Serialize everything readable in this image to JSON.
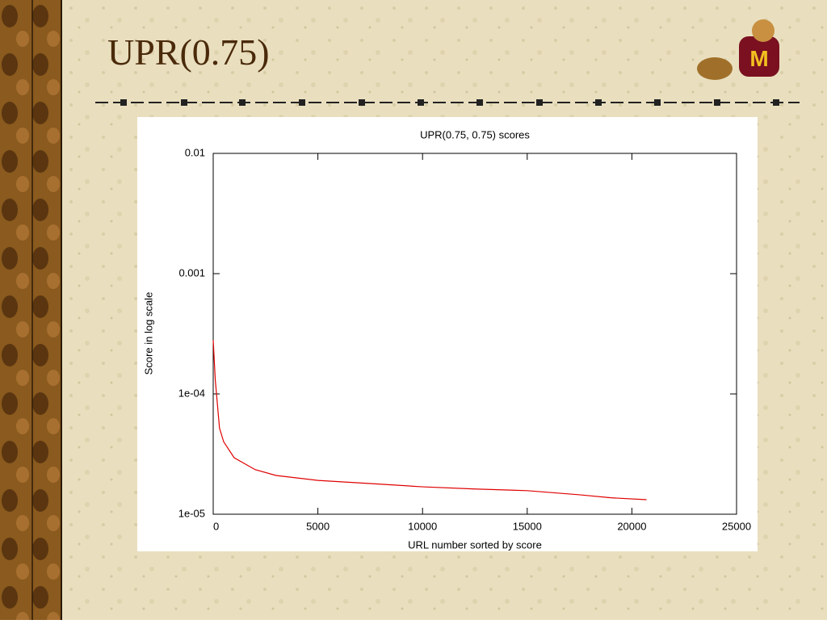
{
  "slide_title": "UPR(0.75)",
  "chart_data": {
    "type": "line",
    "title": "UPR(0.75, 0.75) scores",
    "xlabel": "URL number sorted by score",
    "ylabel": "Score in log scale",
    "x": [
      0,
      100,
      300,
      500,
      1000,
      2000,
      3000,
      5000,
      7500,
      10000,
      12500,
      15000,
      17500,
      19000,
      20700
    ],
    "series": [
      {
        "name": "UPR(0.75, 0.75)",
        "color": "#e00000",
        "values": [
          0.00028,
          0.00013,
          5.2e-05,
          4e-05,
          2.95e-05,
          2.35e-05,
          2.1e-05,
          1.91e-05,
          1.8e-05,
          1.69e-05,
          1.62e-05,
          1.57e-05,
          1.45e-05,
          1.37e-05,
          1.32e-05
        ]
      }
    ],
    "xlim": [
      0,
      25000
    ],
    "xticks": [
      0,
      5000,
      10000,
      15000,
      20000,
      25000
    ],
    "ylim": [
      1e-05,
      0.01
    ],
    "ylog": true,
    "yticks": [
      {
        "value": 1e-05,
        "label": "1e-05"
      },
      {
        "value": 0.0001,
        "label": "1e-04"
      },
      0.001,
      0.01
    ],
    "grid": false
  }
}
